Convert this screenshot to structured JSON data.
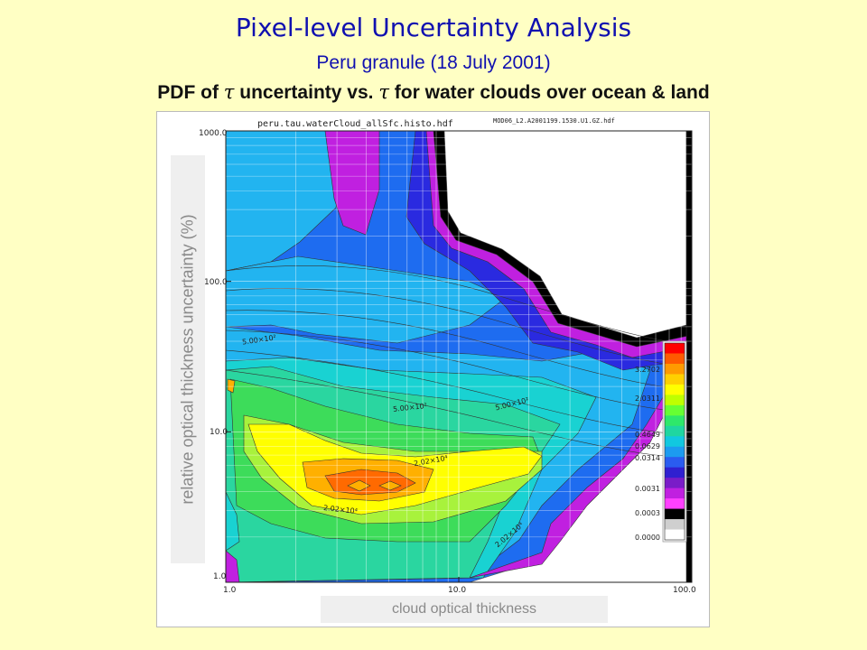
{
  "header": {
    "title": "Pixel-level Uncertainty Analysis",
    "subtitle": "Peru granule (18 July 2001)",
    "subtitle2_prefix": "PDF of",
    "tau_symbol": "τ",
    "subtitle2_mid": "uncertainty vs.",
    "subtitle2_suffix": "for water clouds over ocean & land"
  },
  "plot_header": {
    "file_name": "peru.tau.waterCloud_allSfc.histo.hdf",
    "granule_file": "MOD06_L2.A2001199.1530.U1.GZ.hdf"
  },
  "chart_data": {
    "type": "heatmap",
    "xlabel": "cloud optical thickness",
    "ylabel": "relative optical thickness uncertainty (%)",
    "x_scale": "log",
    "y_scale": "log",
    "xlim": [
      1.0,
      100.0
    ],
    "ylim": [
      1.0,
      1000.0
    ],
    "x_ticks": [
      "1.0",
      "10.0",
      "100.0"
    ],
    "y_ticks": [
      "1.0",
      "10.0",
      "100.0",
      "1000.0"
    ],
    "contour_labels": [
      "5.00×10²",
      "5.00×10²",
      "2.02×10⁴",
      "2.02×10⁴",
      "5.00×10²",
      "2.02×10⁴"
    ],
    "colorbar": {
      "ticks": [
        "3.2702",
        "2.0311",
        "0.4649",
        "0.0629",
        "0.0314",
        "0.0031",
        "0.0003",
        "0.0000"
      ],
      "colors": [
        "#ff0000",
        "#ff5a00",
        "#ff9a00",
        "#ffd000",
        "#ffff00",
        "#bfff00",
        "#66ff33",
        "#2ee86a",
        "#1fd6a0",
        "#11c8e0",
        "#1c9bf0",
        "#2a5cf0",
        "#3020d0",
        "#7a1cc8",
        "#c020e0",
        "#ff40ff",
        "#000000",
        "#cfcfcf",
        "#ffffff"
      ]
    },
    "levels": {
      "white": "#ffffff",
      "black": "#000000",
      "magenta": "#c020e0",
      "darkblue": "#2a2ae0",
      "blue": "#1e6cf0",
      "lightblue": "#22b4f0",
      "cyan": "#19d2d2",
      "teal": "#2ad6a0",
      "green": "#3ddc5a",
      "lightgreen": "#a8f23c",
      "yellow": "#ffff00",
      "orange": "#ffb000",
      "redorange": "#ff6a00"
    }
  }
}
